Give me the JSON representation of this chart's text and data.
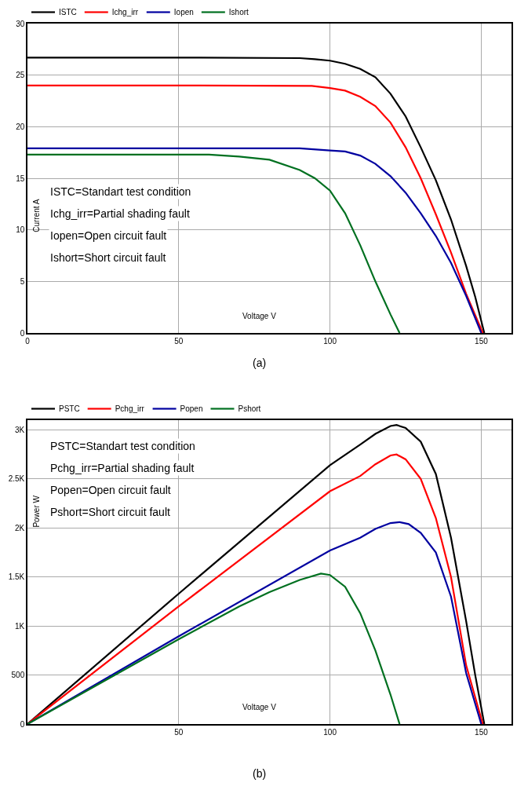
{
  "chart_data": [
    {
      "type": "line",
      "xlabel": "Voltage V",
      "ylabel": "Current A",
      "xlim": [
        0,
        160
      ],
      "ylim": [
        0,
        30
      ],
      "xticks": [
        0,
        50,
        100,
        150
      ],
      "yticks": [
        0,
        5,
        10,
        15,
        20,
        25,
        30
      ],
      "grid": true,
      "legend": "top left",
      "marker": "none",
      "line_style": "solid",
      "series": [
        {
          "name": "ISTC",
          "color": "#000000",
          "x": [
            0,
            50,
            90,
            95,
            100,
            105,
            110,
            115,
            120,
            125,
            130,
            135,
            140,
            145,
            148,
            151
          ],
          "values": [
            26.7,
            26.7,
            26.65,
            26.55,
            26.4,
            26.1,
            25.6,
            24.8,
            23.2,
            21,
            18,
            14.8,
            11,
            6.5,
            3.5,
            0
          ]
        },
        {
          "name": "Ichg_irr",
          "color": "#ff0000",
          "x": [
            0,
            50,
            94,
            100,
            105,
            110,
            115,
            120,
            125,
            130,
            135,
            140,
            145,
            150.5
          ],
          "values": [
            24,
            24,
            23.95,
            23.75,
            23.5,
            22.9,
            22,
            20.4,
            18,
            15,
            11.5,
            7.8,
            3.8,
            0
          ]
        },
        {
          "name": "Iopen",
          "color": "#0000a0",
          "x": [
            0,
            50,
            90,
            100,
            105,
            110,
            115,
            120,
            125,
            130,
            135,
            140,
            145,
            150
          ],
          "values": [
            17.9,
            17.9,
            17.9,
            17.7,
            17.6,
            17.2,
            16.4,
            15.2,
            13.6,
            11.6,
            9.4,
            6.8,
            3.6,
            0
          ]
        },
        {
          "name": "Ishort",
          "color": "#007020",
          "x": [
            0,
            60,
            70,
            80,
            90,
            95,
            100,
            105,
            110,
            115,
            120,
            123
          ],
          "values": [
            17.3,
            17.3,
            17.1,
            16.8,
            15.8,
            15,
            13.8,
            11.6,
            8.5,
            5,
            1.8,
            0
          ]
        }
      ],
      "annotations": [
        "ISTC=Standart test condition",
        "Ichg_irr=Partial shading fault",
        "Iopen=Open circuit fault",
        "Ishort=Short circuit fault",
        "(a)"
      ]
    },
    {
      "type": "line",
      "xlabel": "Voltage V",
      "ylabel": "Power W",
      "xlim": [
        0,
        160
      ],
      "ylim": [
        0,
        3100
      ],
      "xticks": [
        50,
        100,
        150
      ],
      "yticks": [
        0,
        500,
        {
          "value": 1000,
          "label": "1K"
        },
        {
          "value": 1500,
          "label": "1.5K"
        },
        {
          "value": 2000,
          "label": "2K"
        },
        {
          "value": 2500,
          "label": "2.5K"
        },
        {
          "value": 3000,
          "label": "3K"
        }
      ],
      "grid": true,
      "legend": "top left",
      "marker": "none",
      "line_style": "solid",
      "series": [
        {
          "name": "PSTC",
          "color": "#000000",
          "x": [
            0,
            50,
            100,
            110,
            115,
            120,
            122,
            125,
            130,
            135,
            140,
            145,
            148,
            151
          ],
          "values": [
            0,
            1330,
            2640,
            2850,
            2960,
            3040,
            3050,
            3020,
            2880,
            2550,
            1900,
            1050,
            500,
            0
          ]
        },
        {
          "name": "Pchg_irr",
          "color": "#ff0000",
          "x": [
            0,
            50,
            100,
            110,
            115,
            120,
            122,
            125,
            130,
            135,
            140,
            145,
            150.5
          ],
          "values": [
            0,
            1200,
            2375,
            2530,
            2650,
            2740,
            2750,
            2700,
            2500,
            2100,
            1500,
            600,
            0
          ]
        },
        {
          "name": "Popen",
          "color": "#0000a0",
          "x": [
            0,
            50,
            100,
            110,
            115,
            120,
            123,
            126,
            130,
            135,
            140,
            145,
            150
          ],
          "values": [
            0,
            895,
            1770,
            1900,
            1990,
            2050,
            2060,
            2040,
            1950,
            1750,
            1300,
            520,
            0
          ]
        },
        {
          "name": "Pshort",
          "color": "#007020",
          "x": [
            0,
            50,
            70,
            80,
            90,
            97,
            100,
            105,
            110,
            115,
            120,
            123
          ],
          "values": [
            0,
            865,
            1200,
            1345,
            1470,
            1535,
            1520,
            1400,
            1130,
            750,
            300,
            0
          ]
        }
      ],
      "annotations": [
        "PSTC=Standart test condition",
        "Pchg_irr=Partial shading fault",
        "Popen=Open circuit fault",
        "Pshort=Short circuit fault",
        "(b)"
      ]
    }
  ]
}
